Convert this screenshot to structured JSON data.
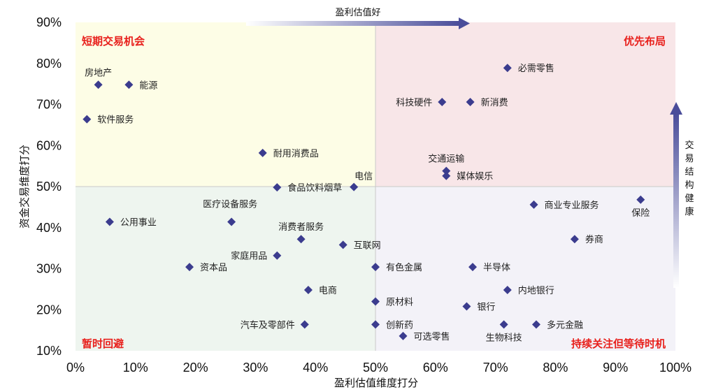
{
  "chart_data": {
    "type": "scatter",
    "xlabel": "盈利估值维度打分",
    "ylabel": "资金交易维度打分",
    "xlim": [
      0,
      100
    ],
    "ylim": [
      10,
      90
    ],
    "x_ticks": [
      "0%",
      "10%",
      "20%",
      "30%",
      "40%",
      "50%",
      "60%",
      "70%",
      "80%",
      "90%",
      "100%"
    ],
    "y_ticks": [
      "10%",
      "20%",
      "30%",
      "40%",
      "50%",
      "60%",
      "70%",
      "80%",
      "90%"
    ],
    "divider": {
      "x": 50,
      "y": 50
    },
    "quadrants": {
      "top_left": "短期交易机会",
      "top_right": "优先布局",
      "bottom_left": "暂时回避",
      "bottom_right": "持续关注但等待时机"
    },
    "quadrant_colors": {
      "top_left": "#fdfde6",
      "top_right": "#f8e6e8",
      "bottom_left": "#eef5ef",
      "bottom_right": "#f3f2f8"
    },
    "top_arrow_label": "盈利估值好",
    "right_arrow_label": "交易结构健康",
    "marker_color": "#3b3c8e",
    "points": [
      {
        "name": "房地产",
        "x": 3.8,
        "y": 74.8,
        "label_pos": "above"
      },
      {
        "name": "能源",
        "x": 8.9,
        "y": 74.8,
        "label_pos": "right"
      },
      {
        "name": "软件服务",
        "x": 1.9,
        "y": 66.4,
        "label_pos": "right"
      },
      {
        "name": "耐用消费品",
        "x": 31.2,
        "y": 58.2,
        "label_pos": "right"
      },
      {
        "name": "食品饮料烟草",
        "x": 33.6,
        "y": 49.8,
        "label_pos": "right"
      },
      {
        "name": "电信",
        "x": 46.4,
        "y": 49.9,
        "label_pos": "upright"
      },
      {
        "name": "交通运输",
        "x": 61.8,
        "y": 53.8,
        "label_pos": "above"
      },
      {
        "name": "媒体娱乐",
        "x": 61.8,
        "y": 52.6,
        "label_pos": "right"
      },
      {
        "name": "科技硬件",
        "x": 61.1,
        "y": 70.6,
        "label_pos": "left"
      },
      {
        "name": "新消费",
        "x": 65.8,
        "y": 70.6,
        "label_pos": "right"
      },
      {
        "name": "必需零售",
        "x": 72.0,
        "y": 78.9,
        "label_pos": "right"
      },
      {
        "name": "公用事业",
        "x": 5.7,
        "y": 41.4,
        "label_pos": "right"
      },
      {
        "name": "医疗设备服务",
        "x": 26.0,
        "y": 41.4,
        "label_pos": "upleft"
      },
      {
        "name": "消费者服务",
        "x": 37.6,
        "y": 37.2,
        "label_pos": "above"
      },
      {
        "name": "互联网",
        "x": 44.6,
        "y": 35.8,
        "label_pos": "right"
      },
      {
        "name": "家庭用品",
        "x": 33.6,
        "y": 33.2,
        "label_pos": "left"
      },
      {
        "name": "资本品",
        "x": 19.0,
        "y": 30.4,
        "label_pos": "right"
      },
      {
        "name": "有色金属",
        "x": 50.0,
        "y": 30.4,
        "label_pos": "right"
      },
      {
        "name": "半导体",
        "x": 66.2,
        "y": 30.4,
        "label_pos": "right"
      },
      {
        "name": "电商",
        "x": 38.8,
        "y": 24.8,
        "label_pos": "right"
      },
      {
        "name": "内地银行",
        "x": 72.0,
        "y": 24.8,
        "label_pos": "right"
      },
      {
        "name": "原材料",
        "x": 50.0,
        "y": 22.0,
        "label_pos": "right"
      },
      {
        "name": "银行",
        "x": 65.2,
        "y": 20.8,
        "label_pos": "right"
      },
      {
        "name": "汽车及零部件",
        "x": 38.2,
        "y": 16.4,
        "label_pos": "left"
      },
      {
        "name": "创新药",
        "x": 50.0,
        "y": 16.4,
        "label_pos": "right"
      },
      {
        "name": "可选零售",
        "x": 54.6,
        "y": 13.6,
        "label_pos": "right"
      },
      {
        "name": "生物科技",
        "x": 71.4,
        "y": 16.4,
        "label_pos": "below"
      },
      {
        "name": "多元金融",
        "x": 76.8,
        "y": 16.4,
        "label_pos": "right"
      },
      {
        "name": "商业专业服务",
        "x": 76.4,
        "y": 45.6,
        "label_pos": "right"
      },
      {
        "name": "保险",
        "x": 94.2,
        "y": 46.8,
        "label_pos": "below"
      },
      {
        "name": "券商",
        "x": 83.2,
        "y": 37.2,
        "label_pos": "right"
      }
    ]
  }
}
